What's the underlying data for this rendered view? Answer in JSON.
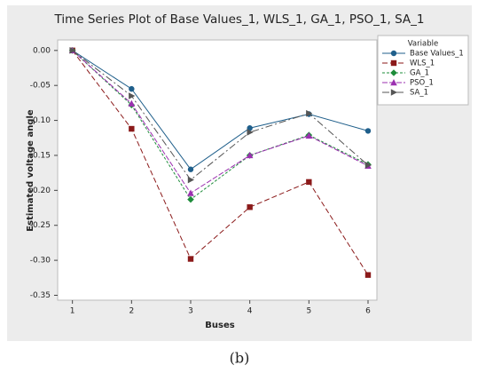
{
  "chart_data": {
    "type": "line",
    "title": "Time Series Plot of Base Values_1, WLS_1, GA_1, PSO_1, SA_1",
    "x_label": "Buses",
    "y_label": "Estimated voltage angle",
    "legend_title": "Variable",
    "caption": "(b)",
    "x": [
      1,
      2,
      3,
      4,
      5,
      6
    ],
    "xlim": [
      0.75,
      6.15
    ],
    "xticks": [
      1,
      2,
      3,
      4,
      5,
      6
    ],
    "ylim": [
      -0.357,
      0.015
    ],
    "yticks": [
      {
        "value": 0,
        "label": "0.00"
      },
      {
        "value": -0.05,
        "label": "-0.05"
      },
      {
        "value": -0.1,
        "label": "-0.10"
      },
      {
        "value": -0.15,
        "label": "-0.15"
      },
      {
        "value": -0.2,
        "label": "-0.20"
      },
      {
        "value": -0.25,
        "label": "-0.25"
      },
      {
        "value": -0.3,
        "label": "-0.30"
      },
      {
        "value": -0.35,
        "label": "-0.35"
      }
    ],
    "series": [
      {
        "name": "Base Values_1",
        "color": "#1f5f8b",
        "marker": "circle",
        "dash": "none",
        "values": [
          0,
          -0.055,
          -0.17,
          -0.111,
          -0.091,
          -0.115
        ]
      },
      {
        "name": "WLS_1",
        "color": "#8b1a1a",
        "marker": "square",
        "dash": "6,3",
        "values": [
          0,
          -0.112,
          -0.298,
          -0.224,
          -0.188,
          -0.321
        ]
      },
      {
        "name": "GA_1",
        "color": "#1e8c3a",
        "marker": "diamond",
        "dash": "3,2",
        "values": [
          0,
          -0.078,
          -0.213,
          -0.15,
          -0.121,
          -0.163
        ]
      },
      {
        "name": "PSO_1",
        "color": "#9b30b0",
        "marker": "triangle",
        "dash": "6,2",
        "values": [
          0,
          -0.076,
          -0.204,
          -0.15,
          -0.122,
          -0.165
        ]
      },
      {
        "name": "SA_1",
        "color": "#555555",
        "marker": "right",
        "dash": "8,3,2,3",
        "values": [
          0,
          -0.065,
          -0.185,
          -0.117,
          -0.09,
          -0.164
        ]
      }
    ]
  }
}
